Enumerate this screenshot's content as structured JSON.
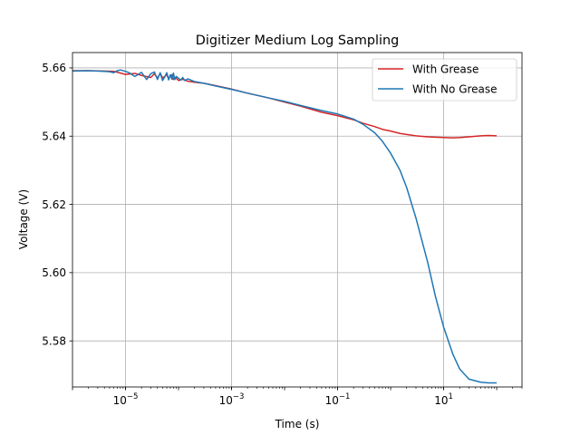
{
  "chart_data": {
    "type": "line",
    "title": "Digitizer Medium Log Sampling",
    "xlabel": "Time (s)",
    "ylabel": "Voltage (V)",
    "xscale": "log",
    "xlim": [
      1e-06,
      300
    ],
    "ylim": [
      5.5665,
      5.6645
    ],
    "grid": true,
    "legend_position": "top-right",
    "x_ticks": [
      {
        "value": 1e-05,
        "base": "10",
        "exp": "−5"
      },
      {
        "value": 0.001,
        "base": "10",
        "exp": "−3"
      },
      {
        "value": 0.1,
        "base": "10",
        "exp": "−1"
      },
      {
        "value": 10,
        "base": "10",
        "exp": "1"
      }
    ],
    "y_ticks": [
      {
        "value": 5.58,
        "label": "5.58"
      },
      {
        "value": 5.6,
        "label": "5.60"
      },
      {
        "value": 5.62,
        "label": "5.62"
      },
      {
        "value": 5.64,
        "label": "5.64"
      },
      {
        "value": 5.66,
        "label": "5.66"
      }
    ],
    "series": [
      {
        "name": "With Grease",
        "color": "#d62728",
        "x": [
          1e-06,
          2e-06,
          4e-06,
          6e-06,
          8e-06,
          1e-05,
          1.5e-05,
          2e-05,
          3e-05,
          3.5e-05,
          4e-05,
          4.5e-05,
          5e-05,
          5.5e-05,
          6e-05,
          6.5e-05,
          7e-05,
          7.5e-05,
          8e-05,
          9e-05,
          0.0001,
          0.00012,
          0.00015,
          0.0002,
          0.0003,
          0.0005,
          0.001,
          0.002,
          0.005,
          0.01,
          0.02,
          0.05,
          0.1,
          0.2,
          0.3,
          0.5,
          0.7,
          1,
          1.5,
          2,
          3,
          5,
          7,
          10,
          15,
          20,
          30,
          50,
          70,
          100
        ],
        "y": [
          5.6592,
          5.6592,
          5.6591,
          5.659,
          5.6585,
          5.6581,
          5.6584,
          5.6578,
          5.6572,
          5.6583,
          5.657,
          5.6584,
          5.6571,
          5.6575,
          5.658,
          5.6568,
          5.6577,
          5.658,
          5.6566,
          5.657,
          5.6563,
          5.6567,
          5.6561,
          5.6558,
          5.6555,
          5.6548,
          5.6538,
          5.6526,
          5.6512,
          5.65,
          5.6488,
          5.647,
          5.646,
          5.6448,
          5.6438,
          5.6428,
          5.642,
          5.6415,
          5.6408,
          5.6405,
          5.6401,
          5.6398,
          5.6397,
          5.6396,
          5.6395,
          5.6396,
          5.6398,
          5.6401,
          5.6402,
          5.6401
        ]
      },
      {
        "name": "With No Grease",
        "color": "#1f77b4",
        "x": [
          1e-06,
          2e-06,
          4e-06,
          5e-06,
          6e-06,
          7e-06,
          8e-06,
          1e-05,
          1.2e-05,
          1.5e-05,
          2e-05,
          2.5e-05,
          3e-05,
          3.5e-05,
          4e-05,
          4.5e-05,
          5e-05,
          5.5e-05,
          6e-05,
          6.5e-05,
          7e-05,
          7.5e-05,
          8e-05,
          8.5e-05,
          9e-05,
          0.0001,
          0.00011,
          0.00012,
          0.00013,
          0.00015,
          0.0002,
          0.0003,
          0.0005,
          0.001,
          0.002,
          0.005,
          0.01,
          0.02,
          0.05,
          0.1,
          0.2,
          0.3,
          0.5,
          0.7,
          1,
          1.5,
          2,
          3,
          5,
          7,
          10,
          15,
          20,
          30,
          50,
          70,
          100
        ],
        "y": [
          5.6591,
          5.6592,
          5.659,
          5.6589,
          5.6586,
          5.6592,
          5.6594,
          5.659,
          5.6585,
          5.6575,
          5.6587,
          5.6566,
          5.6583,
          5.6588,
          5.6566,
          5.6586,
          5.6563,
          5.6574,
          5.6586,
          5.6565,
          5.658,
          5.6567,
          5.6585,
          5.6566,
          5.6575,
          5.657,
          5.6564,
          5.6572,
          5.6563,
          5.6568,
          5.656,
          5.6555,
          5.6547,
          5.6537,
          5.6526,
          5.6512,
          5.6502,
          5.649,
          5.6475,
          5.6465,
          5.645,
          5.6435,
          5.641,
          5.6385,
          5.635,
          5.63,
          5.625,
          5.616,
          5.603,
          5.593,
          5.584,
          5.576,
          5.5718,
          5.5688,
          5.5679,
          5.5677,
          5.5677
        ]
      }
    ]
  }
}
